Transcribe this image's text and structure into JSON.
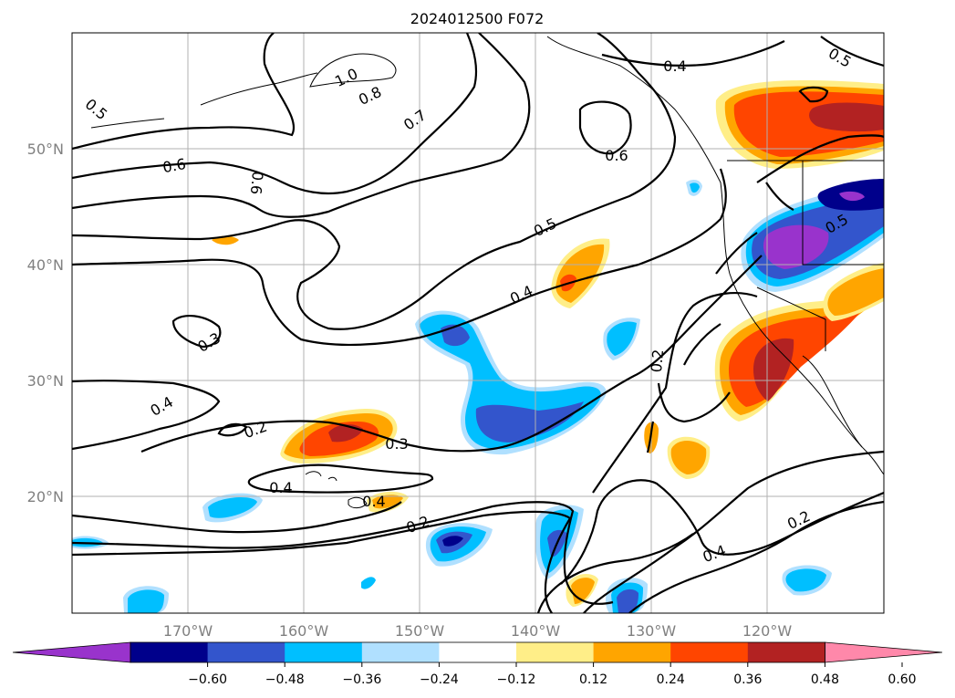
{
  "title": "2024012500 F072",
  "lat_labels": [
    "50°N",
    "40°N",
    "30°N",
    "20°N"
  ],
  "lon_labels": [
    "170°W",
    "160°W",
    "150°W",
    "140°W",
    "130°W",
    "120°W"
  ],
  "colorbar": {
    "colors": [
      "#9933cc",
      "#00008b",
      "#3355cc",
      "#00bfff",
      "#b0e0ff",
      "#ffffff",
      "#ffee88",
      "#ffa500",
      "#ff4500",
      "#b22222",
      "#ff88aa"
    ],
    "tick_labels": [
      "−0.60",
      "−0.48",
      "−0.36",
      "−0.24",
      "−0.12",
      "0.12",
      "0.24",
      "0.36",
      "0.48",
      "0.60"
    ]
  },
  "contour_labels": [
    "0.5",
    "1.0",
    "0.8",
    "0.7",
    "0.6",
    "0.6",
    "0.6",
    "0.4",
    "0.5",
    "0.5",
    "0.4",
    "0.2",
    "0.3",
    "0.4",
    "0.2",
    "0.3",
    "0.4",
    "0.4",
    "0.2",
    "0.4",
    "0.2",
    "0.5"
  ]
}
